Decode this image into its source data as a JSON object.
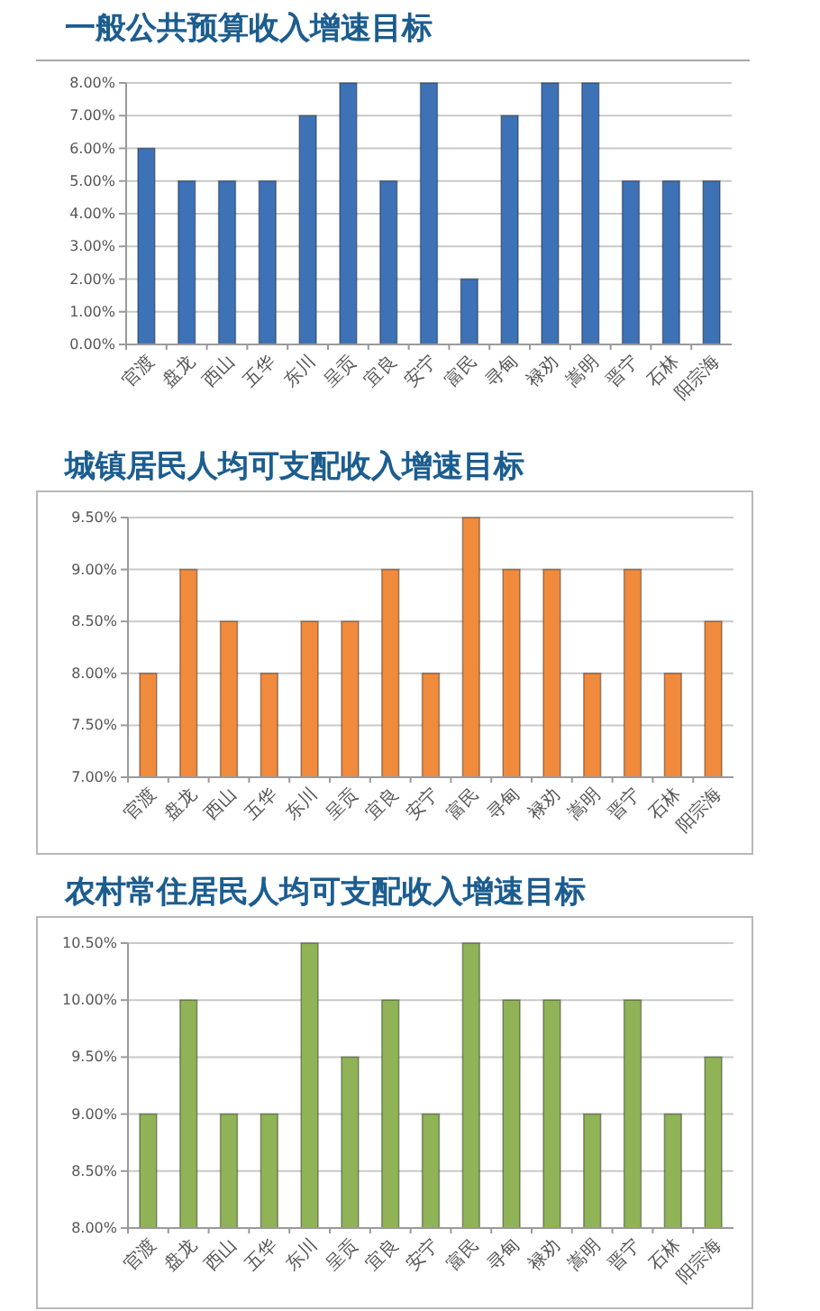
{
  "chart_data": [
    {
      "type": "bar",
      "title": "一般公共预算收入增速目标",
      "categories": [
        "官渡",
        "盘龙",
        "西山",
        "五华",
        "东川",
        "呈贡",
        "宜良",
        "安宁",
        "富民",
        "寻甸",
        "禄劝",
        "嵩明",
        "晋宁",
        "石林",
        "阳宗海"
      ],
      "values": [
        6,
        5,
        5,
        5,
        7,
        8,
        5,
        8,
        2,
        7,
        8,
        8,
        5,
        5,
        5
      ],
      "color": "#3e72b6",
      "ylim": [
        0,
        8
      ],
      "yticks": [
        {
          "value": 0,
          "label": "0.00%"
        },
        {
          "value": 1,
          "label": "1.00%"
        },
        {
          "value": 2,
          "label": "2.00%"
        },
        {
          "value": 3,
          "label": "3.00%"
        },
        {
          "value": 4,
          "label": "4.00%"
        },
        {
          "value": 5,
          "label": "5.00%"
        },
        {
          "value": 6,
          "label": "6.00%"
        },
        {
          "value": 7,
          "label": "7.00%"
        },
        {
          "value": 8,
          "label": "8.00%"
        }
      ],
      "grid": "y"
    },
    {
      "type": "bar",
      "title": "城镇居民人均可支配收入增速目标",
      "categories": [
        "官渡",
        "盘龙",
        "西山",
        "五华",
        "东川",
        "呈贡",
        "宜良",
        "安宁",
        "富民",
        "寻甸",
        "禄劝",
        "嵩明",
        "晋宁",
        "石林",
        "阳宗海"
      ],
      "values": [
        8,
        9,
        8.5,
        8,
        8.5,
        8.5,
        9,
        8,
        9.5,
        9,
        9,
        8,
        9,
        8,
        8.5
      ],
      "color": "#f08a3c",
      "ylim": [
        7,
        9.5
      ],
      "yticks": [
        {
          "value": 7,
          "label": "7.00%"
        },
        {
          "value": 7.5,
          "label": "7.50%"
        },
        {
          "value": 8,
          "label": "8.00%"
        },
        {
          "value": 8.5,
          "label": "8.50%"
        },
        {
          "value": 9,
          "label": "9.00%"
        },
        {
          "value": 9.5,
          "label": "9.50%"
        }
      ],
      "grid": "y"
    },
    {
      "type": "bar",
      "title": "农村常住居民人均可支配收入增速目标",
      "categories": [
        "官渡",
        "盘龙",
        "西山",
        "五华",
        "东川",
        "呈贡",
        "宜良",
        "安宁",
        "富民",
        "寻甸",
        "禄劝",
        "嵩明",
        "晋宁",
        "石林",
        "阳宗海"
      ],
      "values": [
        9,
        10,
        9,
        9,
        10.5,
        9.5,
        10,
        9,
        10.5,
        10,
        10,
        9,
        10,
        9,
        9.5
      ],
      "color": "#8fb356",
      "ylim": [
        8,
        10.5
      ],
      "yticks": [
        {
          "value": 8,
          "label": "8.00%"
        },
        {
          "value": 8.5,
          "label": "8.50%"
        },
        {
          "value": 9,
          "label": "9.00%"
        },
        {
          "value": 9.5,
          "label": "9.50%"
        },
        {
          "value": 10,
          "label": "10.00%"
        },
        {
          "value": 10.5,
          "label": "10.50%"
        }
      ],
      "grid": "y"
    }
  ]
}
